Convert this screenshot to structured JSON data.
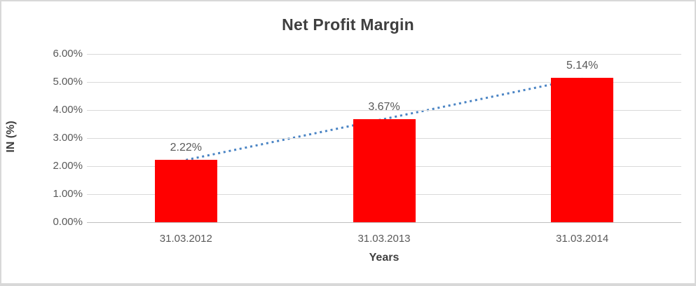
{
  "chart_data": {
    "type": "bar",
    "title": "Net Profit Margin",
    "xlabel": "Years",
    "ylabel": "IN (%)",
    "categories": [
      "31.03.2012",
      "31.03.2013",
      "31.03.2014"
    ],
    "values": [
      2.22,
      3.67,
      5.14
    ],
    "value_labels": [
      "2.22%",
      "3.67%",
      "5.14%"
    ],
    "y_tick_values": [
      0,
      1,
      2,
      3,
      4,
      5,
      6
    ],
    "y_tick_labels": [
      "0.00%",
      "1.00%",
      "2.00%",
      "3.00%",
      "4.00%",
      "5.00%",
      "6.00%"
    ],
    "ylim": [
      0,
      6
    ],
    "grid": "horizontal",
    "legend": "none",
    "trendline": {
      "type": "linear",
      "style": "dotted",
      "start_value": 2.22,
      "end_value": 5.14
    },
    "colors": {
      "bar": "#ff0000",
      "trendline": "#4a84c4",
      "gridline": "#d9d9d9",
      "axis_line": "#bfbfbf",
      "tick_text": "#595959",
      "title_text": "#3f3f3f",
      "frame_border": "#d8d8d8"
    }
  }
}
